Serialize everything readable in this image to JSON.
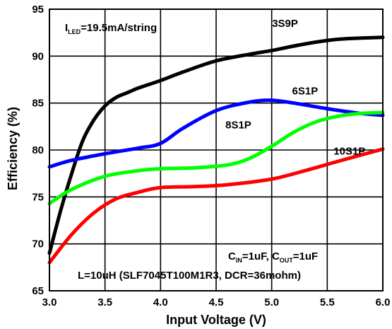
{
  "chart_data": {
    "type": "line",
    "xlabel": "Input Voltage (V)",
    "ylabel": "Efficiency (%)",
    "xlim": [
      3.0,
      6.0
    ],
    "ylim": [
      65,
      95
    ],
    "xticks": [
      "3.0",
      "3.5",
      "4.0",
      "4.5",
      "5.0",
      "5.5",
      "6.0"
    ],
    "yticks": [
      "65",
      "70",
      "75",
      "80",
      "85",
      "90",
      "95"
    ],
    "grid": true,
    "series": [
      {
        "name": "3S9P",
        "color": "#000000",
        "x": [
          3.0,
          3.1,
          3.2,
          3.3,
          3.4,
          3.5,
          3.6,
          3.7,
          3.8,
          4.0,
          4.2,
          4.5,
          4.8,
          5.0,
          5.3,
          5.6,
          6.0
        ],
        "y": [
          69.0,
          73.5,
          77.5,
          81.0,
          83.2,
          84.7,
          85.6,
          86.1,
          86.6,
          87.4,
          88.3,
          89.5,
          90.2,
          90.6,
          91.3,
          91.8,
          92.0
        ]
      },
      {
        "name": "6S1P",
        "color": "#0000ff",
        "x": [
          3.0,
          3.2,
          3.5,
          3.8,
          4.0,
          4.2,
          4.5,
          4.8,
          5.0,
          5.2,
          5.5,
          5.8,
          6.0
        ],
        "y": [
          78.2,
          78.9,
          79.6,
          80.2,
          80.7,
          82.3,
          84.2,
          85.1,
          85.3,
          85.0,
          84.4,
          83.9,
          83.7
        ]
      },
      {
        "name": "8S1P",
        "color": "#00ff00",
        "x": [
          3.0,
          3.2,
          3.5,
          3.8,
          4.0,
          4.3,
          4.6,
          4.8,
          5.0,
          5.2,
          5.4,
          5.6,
          5.8,
          6.0
        ],
        "y": [
          74.3,
          75.8,
          77.2,
          77.8,
          78.0,
          78.1,
          78.4,
          79.1,
          80.4,
          81.9,
          83.0,
          83.6,
          83.9,
          84.0
        ]
      },
      {
        "name": "10S1P",
        "color": "#ff0000",
        "x": [
          3.0,
          3.2,
          3.4,
          3.6,
          3.8,
          4.0,
          4.3,
          4.6,
          5.0,
          5.3,
          5.6,
          6.0
        ],
        "y": [
          68.0,
          71.0,
          73.3,
          74.8,
          75.5,
          76.0,
          76.1,
          76.3,
          76.9,
          77.8,
          78.8,
          80.1
        ]
      }
    ],
    "annotations": {
      "iled": {
        "main": "I",
        "sub": "LED",
        "rest": "=19.5mA/string"
      },
      "cap_line": {
        "c1": "C",
        "c1_sub": "IN",
        "mid": "=1uF, C",
        "c2_sub": "OUT",
        "end": "=1uF"
      },
      "inductor_line": "L=10uH (SLF7045T100M1R3, DCR=36mohm)",
      "labels": [
        {
          "text": "3S9P",
          "x": 5.12,
          "y": 93.1
        },
        {
          "text": "6S1P",
          "x": 5.3,
          "y": 85.9
        },
        {
          "text": "8S1P",
          "x": 4.7,
          "y": 82.3
        },
        {
          "text": "10S1P",
          "x": 5.7,
          "y": 79.5
        }
      ]
    }
  }
}
